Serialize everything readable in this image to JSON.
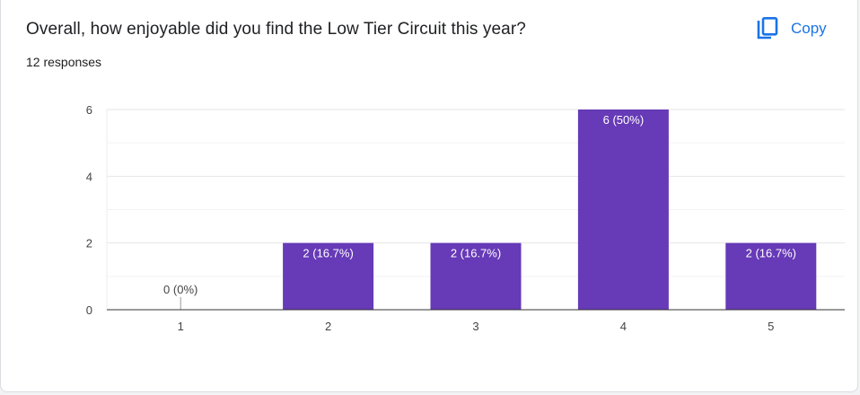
{
  "question": "Overall, how enjoyable did you find the Low Tier Circuit this year?",
  "responses": "12 responses",
  "copy_label": "Copy",
  "colors": {
    "bar": "#673ab7",
    "accent": "#1a73e8"
  },
  "chart_data": {
    "type": "bar",
    "title": "",
    "xlabel": "",
    "ylabel": "",
    "categories": [
      "1",
      "2",
      "3",
      "4",
      "5"
    ],
    "values": [
      0,
      2,
      2,
      6,
      2
    ],
    "data_labels": [
      "0 (0%)",
      "2 (16.7%)",
      "2 (16.7%)",
      "6 (50%)",
      "2 (16.7%)"
    ],
    "ylim": [
      0,
      6
    ],
    "yticks": [
      0,
      2,
      4,
      6
    ],
    "grid": true,
    "legend": "none"
  }
}
